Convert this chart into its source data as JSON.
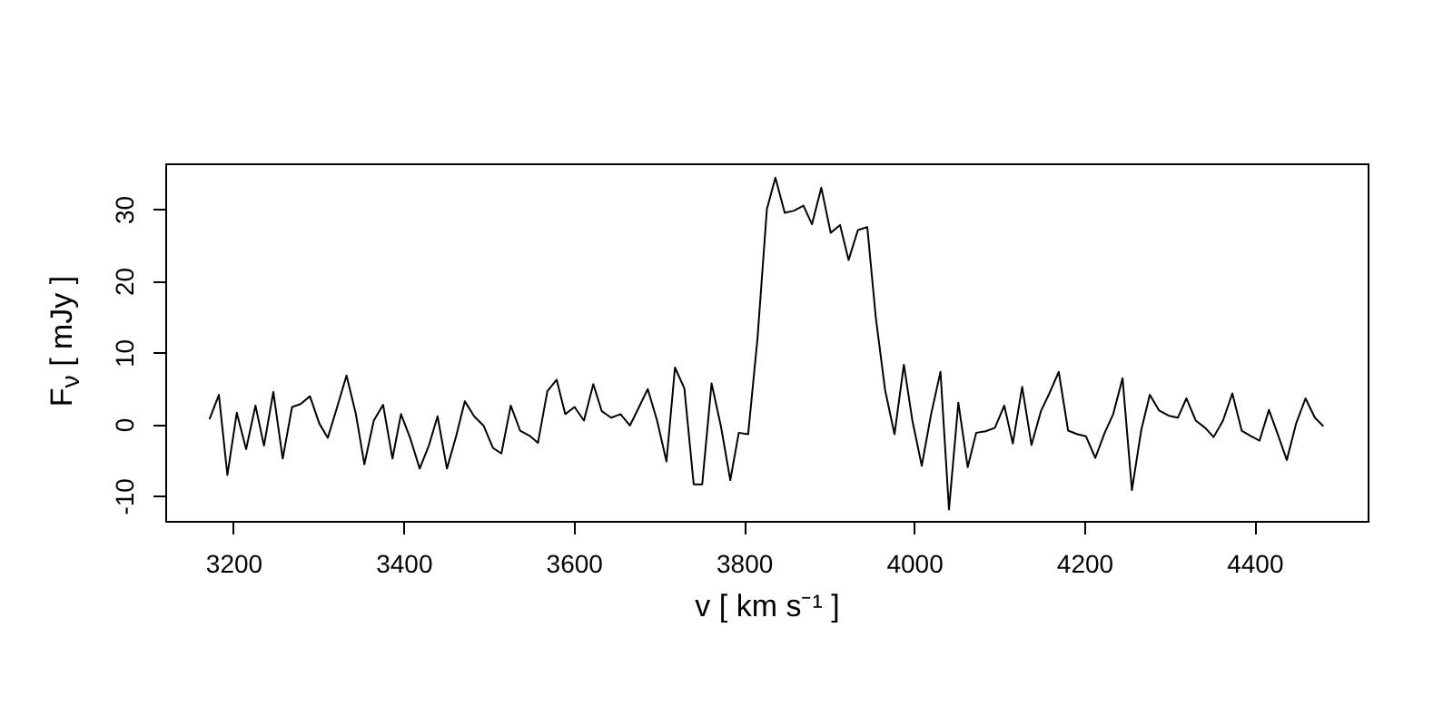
{
  "chart_data": {
    "type": "line",
    "xlabel": "v [ km s⁻¹ ]",
    "ylabel": "F$_{ν}$ [ mJy ]",
    "x": [
      3172,
      3183,
      3193,
      3204,
      3215,
      3226,
      3236,
      3247,
      3258,
      3269,
      3279,
      3290,
      3301,
      3311,
      3322,
      3333,
      3344,
      3354,
      3365,
      3376,
      3387,
      3397,
      3408,
      3419,
      3430,
      3440,
      3451,
      3462,
      3472,
      3483,
      3494,
      3505,
      3515,
      3526,
      3537,
      3548,
      3558,
      3569,
      3580,
      3590,
      3601,
      3612,
      3623,
      3633,
      3644,
      3655,
      3666,
      3676,
      3687,
      3698,
      3709,
      3719,
      3730,
      3741,
      3751,
      3762,
      3773,
      3784,
      3794,
      3805,
      3816,
      3827,
      3837,
      3848,
      3859,
      3870,
      3880,
      3891,
      3902,
      3913,
      3923,
      3934,
      3945,
      3955,
      3966,
      3977,
      3988,
      3998,
      4009,
      4020,
      4031,
      4041,
      4052,
      4063,
      4073,
      4084,
      4095,
      4106,
      4116,
      4127,
      4138,
      4149,
      4159,
      4170,
      4181,
      4192,
      4202,
      4213,
      4224,
      4234,
      4245,
      4256,
      4267,
      4277,
      4288,
      4299,
      4310,
      4320,
      4331,
      4342,
      4352,
      4363,
      4374,
      4385,
      4395,
      4406,
      4417,
      4428,
      4438,
      4449,
      4460,
      4471,
      4481
    ],
    "series": [
      {
        "color": "#000000",
        "values": [
          0.7,
          4.1,
          -7.1,
          1.6,
          -3.5,
          2.6,
          -3.0,
          4.5,
          -4.8,
          2.4,
          2.8,
          3.9,
          0.1,
          -1.9,
          2.4,
          6.8,
          1.4,
          -5.6,
          0.5,
          2.7,
          -4.8,
          1.4,
          -2.0,
          -6.2,
          -2.9,
          1.1,
          -6.2,
          -1.6,
          3.2,
          1.1,
          -0.2,
          -3.3,
          -4.1,
          2.6,
          -0.9,
          -1.6,
          -2.6,
          4.6,
          6.2,
          1.4,
          2.4,
          0.5,
          5.6,
          1.8,
          0.9,
          1.4,
          -0.2,
          2.2,
          4.9,
          0.5,
          -5.2,
          7.9,
          5.0,
          -8.4,
          -8.4,
          5.7,
          -0.3,
          -7.8,
          -1.2,
          -1.4,
          12,
          30.0,
          34.4,
          29.5,
          29.8,
          30.5,
          27.9,
          33.0,
          26.7,
          27.8,
          22.9,
          27.1,
          27.5,
          14.9,
          4.7,
          -1.4,
          8.3,
          0.5,
          -5.8,
          1.4,
          7.3,
          -11.9,
          3.0,
          -6.0,
          -1.2,
          -1.0,
          -0.5,
          2.6,
          -2.7,
          5.2,
          -2.9,
          1.8,
          4.3,
          7.3,
          -0.9,
          -1.4,
          -1.7,
          -4.7,
          -1.2,
          1.4,
          6.4,
          -9.2,
          -0.8,
          4.1,
          1.9,
          1.2,
          0.9,
          3.6,
          0.5,
          -0.5,
          -1.8,
          0.5,
          4.3,
          -0.9,
          -1.6,
          -2.3,
          2.0,
          -1.6,
          -5.0,
          0.1,
          3.6,
          0.9,
          -0.3
        ]
      }
    ],
    "xlim": [
      3120,
      4533
    ],
    "ylim": [
      -13.5,
      36.4
    ],
    "xticks": [
      3200,
      3400,
      3600,
      3800,
      4000,
      4200,
      4400
    ],
    "yticks": [
      -10,
      0,
      10,
      20,
      30
    ],
    "grid": false,
    "marker": "none",
    "line_style": "solid"
  }
}
